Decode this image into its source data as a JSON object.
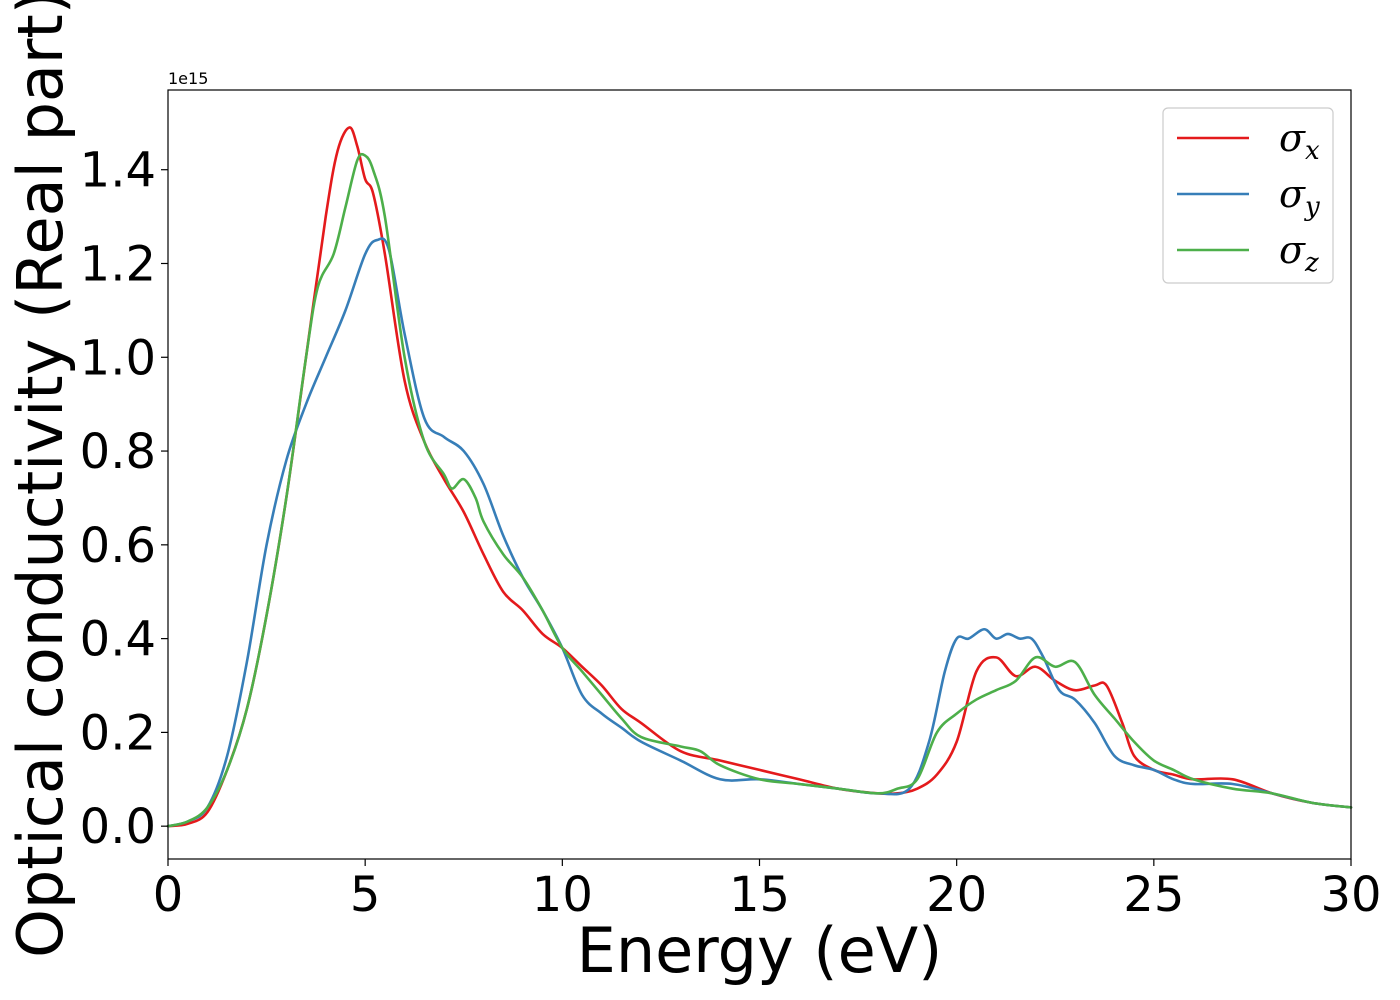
{
  "chart_data": {
    "type": "line",
    "title": "",
    "xlabel": "Energy (eV)",
    "ylabel": "Optical conductivity (Real part)",
    "y_offset_text": "1e15",
    "xlim": [
      0,
      30
    ],
    "ylim": [
      -0.07,
      1.57
    ],
    "xticks": [
      0,
      5,
      10,
      15,
      20,
      25,
      30
    ],
    "xtick_labels": [
      "0",
      "5",
      "10",
      "15",
      "20",
      "25",
      "30"
    ],
    "yticks": [
      0.0,
      0.2,
      0.4,
      0.6,
      0.8,
      1.0,
      1.2,
      1.4
    ],
    "ytick_labels": [
      "0.0",
      "0.2",
      "0.4",
      "0.6",
      "0.8",
      "1.0",
      "1.2",
      "1.4"
    ],
    "grid": false,
    "legend_position": "top-right",
    "series": [
      {
        "name": "σx",
        "legend_base": "σ",
        "legend_sub": "x",
        "color": "#e41a1c",
        "x": [
          0,
          0.5,
          1.0,
          1.5,
          2.0,
          2.5,
          3.0,
          3.5,
          4.0,
          4.3,
          4.6,
          4.8,
          5.0,
          5.2,
          5.5,
          6.0,
          6.5,
          7.0,
          7.5,
          8.0,
          8.5,
          9.0,
          9.5,
          10.0,
          10.5,
          11.0,
          11.5,
          12.0,
          13.0,
          14.0,
          15.0,
          16.0,
          17.0,
          18.0,
          18.5,
          19.0,
          19.5,
          20.0,
          20.5,
          21.0,
          21.5,
          22.0,
          22.5,
          23.0,
          23.5,
          23.8,
          24.2,
          24.5,
          25.0,
          25.5,
          26.0,
          27.0,
          28.0,
          29.0,
          30.0
        ],
        "y": [
          0.0,
          0.005,
          0.03,
          0.12,
          0.25,
          0.45,
          0.7,
          1.0,
          1.3,
          1.44,
          1.49,
          1.45,
          1.38,
          1.35,
          1.22,
          0.95,
          0.82,
          0.74,
          0.67,
          0.58,
          0.5,
          0.46,
          0.41,
          0.38,
          0.34,
          0.3,
          0.25,
          0.22,
          0.16,
          0.14,
          0.12,
          0.1,
          0.08,
          0.07,
          0.07,
          0.08,
          0.11,
          0.18,
          0.33,
          0.36,
          0.32,
          0.34,
          0.31,
          0.29,
          0.3,
          0.3,
          0.22,
          0.15,
          0.12,
          0.11,
          0.1,
          0.1,
          0.07,
          0.05,
          0.04
        ]
      },
      {
        "name": "σy",
        "legend_base": "σ",
        "legend_sub": "y",
        "color": "#377eb8",
        "x": [
          0,
          0.5,
          1.0,
          1.5,
          2.0,
          2.5,
          3.0,
          3.5,
          4.0,
          4.5,
          5.0,
          5.3,
          5.6,
          6.0,
          6.5,
          7.0,
          7.5,
          8.0,
          8.5,
          9.0,
          9.5,
          10.0,
          10.5,
          11.0,
          11.5,
          12.0,
          13.0,
          14.0,
          15.0,
          16.0,
          17.0,
          18.0,
          18.8,
          19.3,
          19.7,
          20.0,
          20.3,
          20.7,
          21.0,
          21.3,
          21.6,
          21.9,
          22.2,
          22.6,
          23.0,
          23.5,
          24.0,
          24.5,
          25.0,
          25.5,
          26.0,
          27.0,
          28.0,
          29.0,
          30.0
        ],
        "y": [
          0.0,
          0.01,
          0.04,
          0.15,
          0.35,
          0.6,
          0.78,
          0.9,
          1.0,
          1.1,
          1.22,
          1.25,
          1.23,
          1.05,
          0.87,
          0.83,
          0.8,
          0.73,
          0.62,
          0.53,
          0.46,
          0.38,
          0.28,
          0.24,
          0.21,
          0.18,
          0.14,
          0.1,
          0.1,
          0.09,
          0.08,
          0.07,
          0.08,
          0.18,
          0.33,
          0.4,
          0.4,
          0.42,
          0.4,
          0.41,
          0.4,
          0.4,
          0.36,
          0.29,
          0.27,
          0.22,
          0.15,
          0.13,
          0.12,
          0.1,
          0.09,
          0.09,
          0.07,
          0.05,
          0.04
        ]
      },
      {
        "name": "σz",
        "legend_base": "σ",
        "legend_sub": "z",
        "color": "#4daf4a",
        "x": [
          0,
          0.5,
          1.0,
          1.5,
          2.0,
          2.5,
          3.0,
          3.5,
          3.8,
          4.2,
          4.5,
          4.8,
          5.0,
          5.2,
          5.5,
          6.0,
          6.5,
          7.0,
          7.2,
          7.5,
          7.8,
          8.0,
          8.5,
          9.0,
          9.5,
          10.0,
          10.5,
          11.0,
          11.5,
          12.0,
          13.0,
          13.5,
          14.0,
          15.0,
          16.0,
          17.0,
          18.0,
          18.5,
          19.0,
          19.5,
          20.0,
          20.5,
          21.0,
          21.5,
          22.0,
          22.5,
          23.0,
          23.5,
          24.0,
          24.5,
          25.0,
          25.5,
          26.0,
          27.0,
          28.0,
          29.0,
          30.0
        ],
        "y": [
          0.0,
          0.01,
          0.04,
          0.12,
          0.25,
          0.45,
          0.7,
          1.0,
          1.15,
          1.22,
          1.32,
          1.42,
          1.43,
          1.4,
          1.3,
          1.0,
          0.82,
          0.75,
          0.72,
          0.74,
          0.7,
          0.65,
          0.58,
          0.53,
          0.46,
          0.38,
          0.33,
          0.28,
          0.23,
          0.19,
          0.17,
          0.16,
          0.13,
          0.1,
          0.09,
          0.08,
          0.07,
          0.08,
          0.1,
          0.2,
          0.24,
          0.27,
          0.29,
          0.31,
          0.36,
          0.34,
          0.35,
          0.28,
          0.23,
          0.18,
          0.14,
          0.12,
          0.1,
          0.08,
          0.07,
          0.05,
          0.04
        ]
      }
    ]
  }
}
